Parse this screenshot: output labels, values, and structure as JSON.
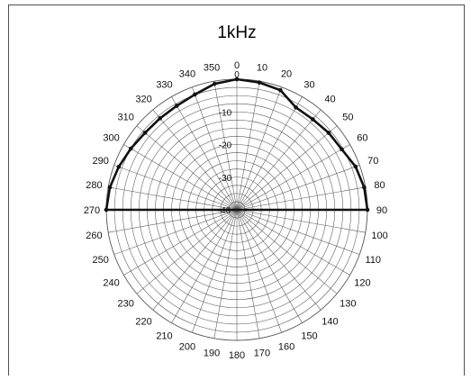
{
  "chart_data": {
    "type": "polar-line",
    "title": "1kHz",
    "angle_unit": "degrees",
    "angle_ticks": [
      0,
      10,
      20,
      30,
      40,
      50,
      60,
      70,
      80,
      90,
      100,
      110,
      120,
      130,
      140,
      150,
      160,
      170,
      180,
      190,
      200,
      210,
      220,
      230,
      240,
      250,
      260,
      270,
      280,
      290,
      300,
      310,
      320,
      330,
      340,
      350
    ],
    "angle_tick_labels": [
      "0",
      "10",
      "20",
      "30",
      "40",
      "50",
      "60",
      "70",
      "80",
      "90",
      "100",
      "110",
      "120",
      "130",
      "140",
      "150",
      "160",
      "170",
      "180",
      "190",
      "200",
      "210",
      "220",
      "230",
      "240",
      "250",
      "260",
      "270",
      "280",
      "290",
      "300",
      "310",
      "320",
      "330",
      "340",
      "350"
    ],
    "radial_ticks": [
      0,
      -10,
      -20,
      -30,
      -40
    ],
    "radial_tick_labels": [
      "0",
      "-10",
      "-20",
      "-30",
      "-40"
    ],
    "radial_range": [
      -40,
      0
    ],
    "series": [
      {
        "theta": [
          270,
          280,
          290,
          300,
          310,
          320,
          330,
          340,
          350,
          0,
          10,
          20,
          30,
          40,
          50,
          60,
          70,
          80,
          90
        ],
        "values": [
          0,
          -0.5,
          -1.5,
          -2.5,
          -3.3,
          -3.4,
          -3.2,
          -2.4,
          -0.8,
          0,
          -0.4,
          -1.0,
          -3.8,
          -3.8,
          -3.3,
          -2.9,
          -1.3,
          -0.4,
          0
        ]
      },
      {
        "theta": [
          90,
          270
        ],
        "values": [
          0,
          0
        ]
      }
    ],
    "colors": {
      "trace": "#111111",
      "grid": "#555555",
      "background": "#ffffff"
    },
    "grid": true,
    "legend": "none"
  }
}
